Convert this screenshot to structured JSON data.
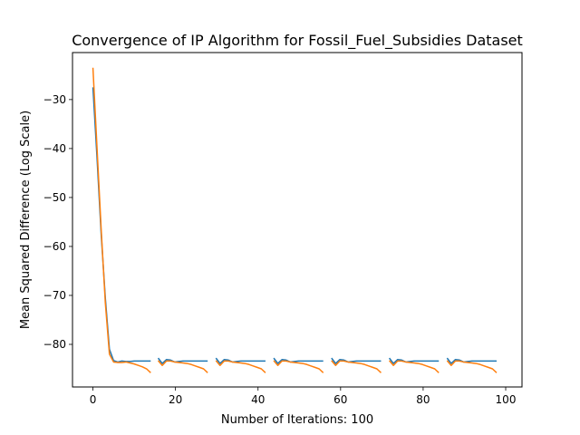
{
  "chart_data": {
    "type": "line",
    "title": "Convergence of IP Algorithm for Fossil_Fuel_Subsidies Dataset",
    "xlabel": "Number of Iterations: 100",
    "ylabel": "Mean Squared Difference (Log Scale)",
    "xlim": [
      -4.95,
      103.95
    ],
    "ylim": [
      -88.7,
      -20.4
    ],
    "x_ticks": [
      0,
      20,
      40,
      60,
      80,
      100
    ],
    "y_ticks": [
      -30,
      -40,
      -50,
      -60,
      -70,
      -80
    ],
    "grid": false,
    "legend": "none",
    "series": [
      {
        "color": "#1f77b4",
        "segments": [
          {
            "x": [
              0,
              1,
              2,
              3,
              4,
              5,
              6,
              7,
              8,
              9,
              10,
              11,
              12,
              13,
              14
            ],
            "y": [
              -27.5,
              -42.0,
              -57.5,
              -70.5,
              -81.0,
              -83.3,
              -83.6,
              -83.4,
              -83.5,
              -83.5,
              -83.4,
              -83.4,
              -83.4,
              -83.4,
              -83.4
            ]
          },
          {
            "x": [
              15.8,
              16.8,
              17.8,
              18.8,
              19.8,
              20.8,
              21.8,
              22.8,
              23.8,
              24.8,
              25.8,
              26.8,
              27.8
            ],
            "y": [
              -82.8,
              -83.9,
              -83.1,
              -83.2,
              -83.6,
              -83.5,
              -83.4,
              -83.4,
              -83.4,
              -83.4,
              -83.4,
              -83.4,
              -83.4
            ]
          },
          {
            "x": [
              29.8,
              30.8,
              31.8,
              32.8,
              33.8,
              34.8,
              35.8,
              36.8,
              37.8,
              38.8,
              39.8,
              40.8,
              41.8
            ],
            "y": [
              -82.8,
              -83.9,
              -83.1,
              -83.2,
              -83.6,
              -83.5,
              -83.4,
              -83.4,
              -83.4,
              -83.4,
              -83.4,
              -83.4,
              -83.4
            ]
          },
          {
            "x": [
              43.8,
              44.8,
              45.8,
              46.8,
              47.8,
              48.8,
              49.8,
              50.8,
              51.8,
              52.8,
              53.8,
              54.8,
              55.8
            ],
            "y": [
              -82.8,
              -83.9,
              -83.1,
              -83.2,
              -83.6,
              -83.5,
              -83.4,
              -83.4,
              -83.4,
              -83.4,
              -83.4,
              -83.4,
              -83.4
            ]
          },
          {
            "x": [
              57.8,
              58.8,
              59.8,
              60.8,
              61.8,
              62.8,
              63.8,
              64.8,
              65.8,
              66.8,
              67.8,
              68.8,
              69.8
            ],
            "y": [
              -82.8,
              -83.9,
              -83.1,
              -83.2,
              -83.6,
              -83.5,
              -83.4,
              -83.4,
              -83.4,
              -83.4,
              -83.4,
              -83.4,
              -83.4
            ]
          },
          {
            "x": [
              71.8,
              72.8,
              73.8,
              74.8,
              75.8,
              76.8,
              77.8,
              78.8,
              79.8,
              80.8,
              81.8,
              82.8,
              83.8
            ],
            "y": [
              -82.8,
              -83.9,
              -83.1,
              -83.2,
              -83.6,
              -83.5,
              -83.4,
              -83.4,
              -83.4,
              -83.4,
              -83.4,
              -83.4,
              -83.4
            ]
          },
          {
            "x": [
              85.8,
              86.8,
              87.8,
              88.8,
              89.8,
              90.8,
              91.8,
              92.8,
              93.8,
              94.8,
              95.8,
              96.8,
              97.8
            ],
            "y": [
              -82.8,
              -83.9,
              -83.1,
              -83.2,
              -83.6,
              -83.5,
              -83.4,
              -83.4,
              -83.4,
              -83.4,
              -83.4,
              -83.4,
              -83.4
            ]
          }
        ]
      },
      {
        "color": "#ff7f0e",
        "segments": [
          {
            "x": [
              0,
              1,
              2,
              3,
              4,
              5,
              6,
              7,
              8,
              9,
              10,
              11,
              12,
              13,
              14
            ],
            "y": [
              -23.5,
              -40.0,
              -56.5,
              -71.5,
              -82.0,
              -83.6,
              -83.7,
              -83.7,
              -83.6,
              -83.8,
              -84.0,
              -84.3,
              -84.6,
              -85.0,
              -85.8
            ]
          },
          {
            "x": [
              15.8,
              16.8,
              17.8,
              18.8,
              19.8,
              20.8,
              21.8,
              22.8,
              23.8,
              24.8,
              25.8,
              26.8,
              27.8
            ],
            "y": [
              -83.3,
              -84.3,
              -83.4,
              -83.4,
              -83.6,
              -83.7,
              -83.8,
              -83.9,
              -84.1,
              -84.4,
              -84.7,
              -85.0,
              -85.8
            ]
          },
          {
            "x": [
              29.8,
              30.8,
              31.8,
              32.8,
              33.8,
              34.8,
              35.8,
              36.8,
              37.8,
              38.8,
              39.8,
              40.8,
              41.8
            ],
            "y": [
              -83.3,
              -84.3,
              -83.4,
              -83.4,
              -83.6,
              -83.7,
              -83.8,
              -83.9,
              -84.1,
              -84.4,
              -84.7,
              -85.0,
              -85.8
            ]
          },
          {
            "x": [
              43.8,
              44.8,
              45.8,
              46.8,
              47.8,
              48.8,
              49.8,
              50.8,
              51.8,
              52.8,
              53.8,
              54.8,
              55.8
            ],
            "y": [
              -83.3,
              -84.3,
              -83.4,
              -83.4,
              -83.6,
              -83.7,
              -83.8,
              -83.9,
              -84.1,
              -84.4,
              -84.7,
              -85.0,
              -85.8
            ]
          },
          {
            "x": [
              57.8,
              58.8,
              59.8,
              60.8,
              61.8,
              62.8,
              63.8,
              64.8,
              65.8,
              66.8,
              67.8,
              68.8,
              69.8
            ],
            "y": [
              -83.3,
              -84.3,
              -83.4,
              -83.4,
              -83.6,
              -83.7,
              -83.8,
              -83.9,
              -84.1,
              -84.4,
              -84.7,
              -85.0,
              -85.8
            ]
          },
          {
            "x": [
              71.8,
              72.8,
              73.8,
              74.8,
              75.8,
              76.8,
              77.8,
              78.8,
              79.8,
              80.8,
              81.8,
              82.8,
              83.8
            ],
            "y": [
              -83.3,
              -84.3,
              -83.4,
              -83.4,
              -83.6,
              -83.7,
              -83.8,
              -83.9,
              -84.1,
              -84.4,
              -84.7,
              -85.0,
              -85.8
            ]
          },
          {
            "x": [
              85.8,
              86.8,
              87.8,
              88.8,
              89.8,
              90.8,
              91.8,
              92.8,
              93.8,
              94.8,
              95.8,
              96.8,
              97.8
            ],
            "y": [
              -83.3,
              -84.3,
              -83.4,
              -83.4,
              -83.6,
              -83.7,
              -83.8,
              -83.9,
              -84.1,
              -84.4,
              -84.7,
              -85.0,
              -85.8
            ]
          }
        ]
      }
    ]
  }
}
